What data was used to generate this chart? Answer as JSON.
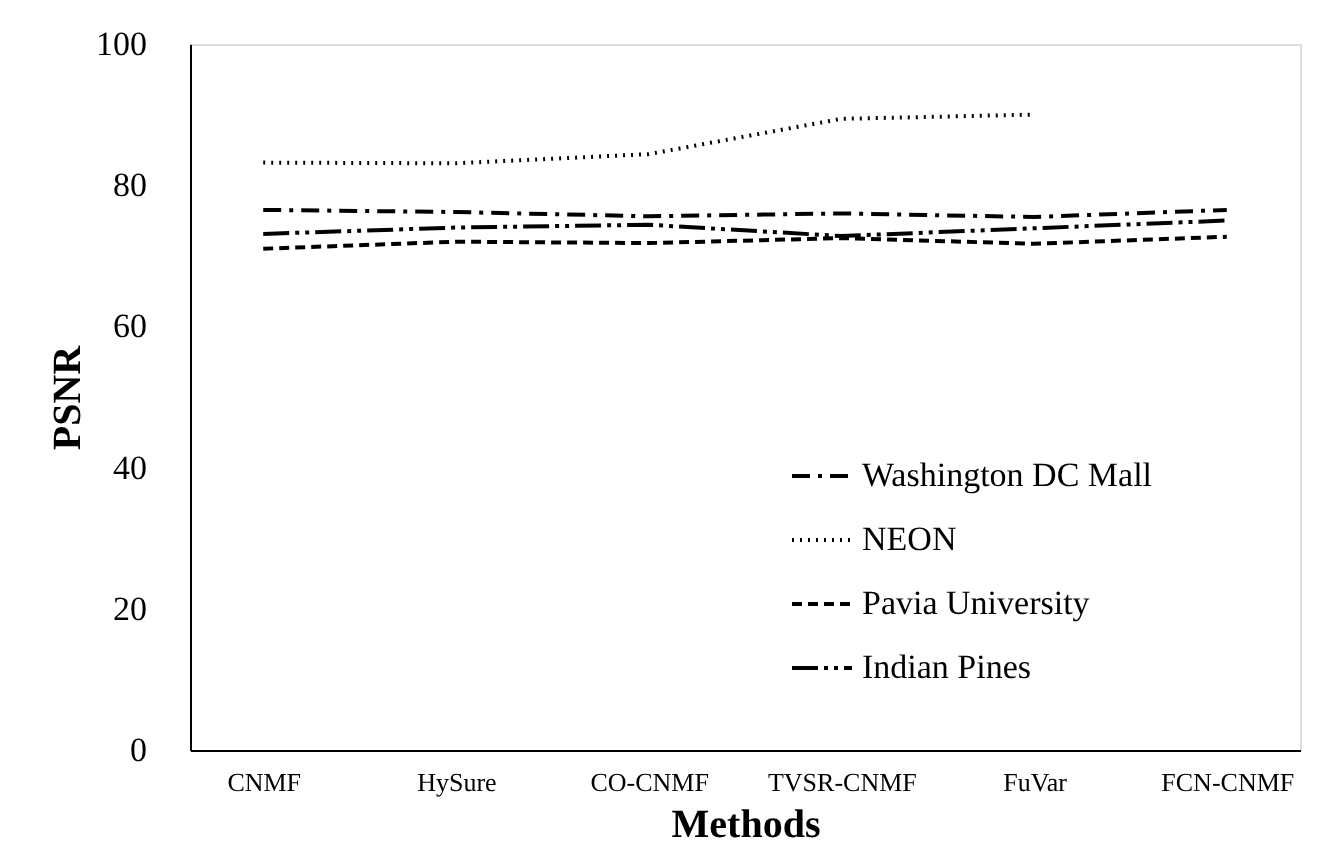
{
  "chart_data": {
    "type": "line",
    "xlabel": "Methods",
    "ylabel": "PSNR",
    "categories": [
      "CNMF",
      "HySure",
      "CO-CNMF",
      "TVSR-CNMF",
      "FuVar",
      "FCN-CNMF"
    ],
    "series": [
      {
        "name": "Washington DC Mall",
        "color": "#000000",
        "line_style": "dashed",
        "values": [
          76.5,
          76.2,
          75.6,
          76.0,
          75.5,
          76.5
        ]
      },
      {
        "name": "NEON",
        "color": "#000000",
        "line_style": "dotted",
        "values": [
          83.2,
          83.1,
          84.4,
          89.4,
          90.0,
          null
        ]
      },
      {
        "name": "Pavia University",
        "color": "#000000",
        "line_style": "dashed",
        "values": [
          71.0,
          72.0,
          71.8,
          72.5,
          71.7,
          72.7
        ]
      },
      {
        "name": "Indian Pines",
        "color": "#000000",
        "line_style": "dashed",
        "values": [
          73.1,
          74.0,
          74.4,
          72.8,
          73.9,
          75.0
        ]
      }
    ],
    "ylim": [
      0,
      100
    ],
    "yticks": [
      0,
      20,
      40,
      60,
      80,
      100
    ],
    "grid": false,
    "legend": "right",
    "marker": "none"
  }
}
